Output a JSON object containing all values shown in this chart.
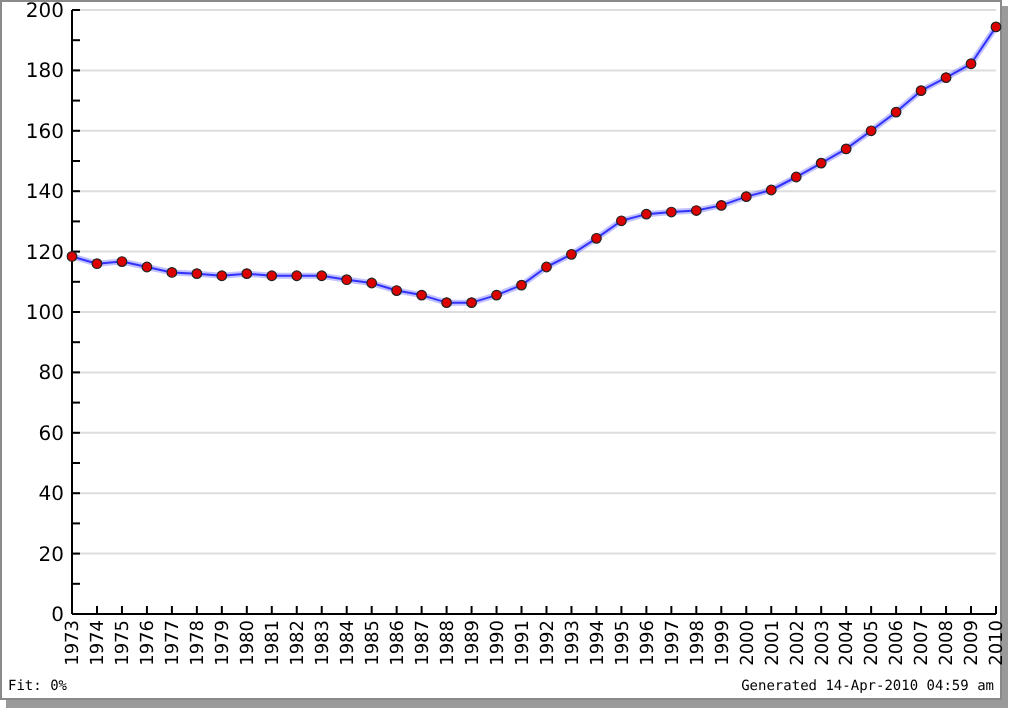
{
  "chart_data": {
    "type": "line",
    "categories": [
      "1973",
      "1974",
      "1975",
      "1976",
      "1977",
      "1978",
      "1979",
      "1980",
      "1981",
      "1982",
      "1983",
      "1984",
      "1985",
      "1986",
      "1987",
      "1988",
      "1989",
      "1990",
      "1991",
      "1992",
      "1993",
      "1994",
      "1995",
      "1996",
      "1997",
      "1998",
      "1999",
      "2000",
      "2001",
      "2002",
      "2003",
      "2004",
      "2005",
      "2006",
      "2007",
      "2008",
      "2009",
      "2010"
    ],
    "series": [
      {
        "color": "#3333ff",
        "values": [
          118.4,
          116,
          116.7,
          114.9,
          113.1,
          112.7,
          112,
          112.7,
          112,
          112,
          112,
          110.7,
          109.6,
          107.1,
          105.6,
          103.1,
          103.1,
          105.6,
          108.9,
          114.9,
          119.1,
          124.4,
          130.2,
          132.4,
          133.1,
          133.6,
          135.3,
          138.2,
          140.4,
          144.7,
          149.3,
          154,
          160,
          166.2,
          173.3,
          177.6,
          182.2,
          194.4
        ]
      }
    ],
    "ylim": [
      0,
      200
    ],
    "yticks": [
      0,
      {
        "value": 10,
        "label": null
      },
      20,
      {
        "value": 30,
        "label": null
      },
      40,
      {
        "value": 50,
        "label": null
      },
      60,
      {
        "value": 70,
        "label": null
      },
      80,
      {
        "value": 90,
        "label": null
      },
      100,
      {
        "value": 110,
        "label": null
      },
      120,
      {
        "value": 130,
        "label": null
      },
      140,
      {
        "value": 150,
        "label": null
      },
      160,
      {
        "value": 170,
        "label": null
      },
      180,
      {
        "value": 190,
        "label": null
      },
      200
    ],
    "grid": "y",
    "marker": "circle",
    "line_style": "solid",
    "annotations": [
      "Fit: 0%",
      "Generated 14-Apr-2010 04:59 am"
    ]
  }
}
